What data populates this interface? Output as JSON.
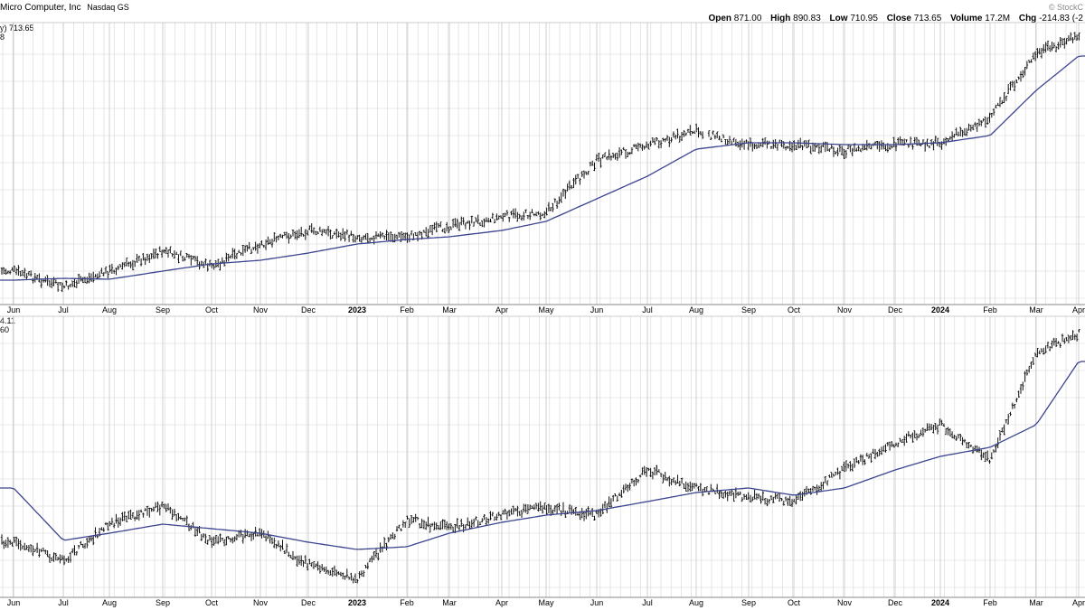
{
  "header": {
    "title": "Micro Computer, Inc",
    "exchange": "Nasdaq GS",
    "watermark": "© StockC",
    "open_label": "Open",
    "open": "871.00",
    "high_label": "High",
    "high": "890.83",
    "low_label": "Low",
    "low": "710.95",
    "close_label": "Close",
    "close": "713.65",
    "volume_label": "Volume",
    "volume": "17.2M",
    "chg_label": "Chg",
    "chg": "-214.83 (-2"
  },
  "panel1": {
    "tag1": "y) 713.65",
    "tag2": "8"
  },
  "panel2": {
    "tag1": "4.11",
    "tag2": "60"
  },
  "chart_data": [
    {
      "type": "line",
      "x": [
        "Jun",
        "Jul",
        "Aug",
        "Sep",
        "Oct",
        "Nov",
        "Dec",
        "2023",
        "Feb",
        "Mar",
        "Apr",
        "May",
        "Jun",
        "Jul",
        "Aug",
        "Sep",
        "Oct",
        "Nov",
        "Dec",
        "2024",
        "Feb",
        "Mar",
        "Apr"
      ],
      "series": [
        {
          "values": [
            300,
            318,
            300,
            278,
            295,
            270,
            255,
            262,
            262,
            250,
            240,
            235,
            178,
            160,
            145,
            160,
            160,
            167,
            160,
            158,
            130,
            60,
            40
          ]
        },
        {
          "values": [
            310,
            308,
            309,
            300,
            292,
            288,
            280,
            270,
            265,
            262,
            255,
            245,
            220,
            195,
            165,
            158,
            158,
            160,
            160,
            158,
            150,
            100,
            62
          ]
        }
      ],
      "style": {
        "series0": "ohlc-bars",
        "series1": "moving-average",
        "ma_color": "#3d4590"
      },
      "labels": [
        "y) 713.65",
        "8"
      ],
      "grid": true
    },
    {
      "type": "line",
      "x": [
        "Jun",
        "Jul",
        "Aug",
        "Sep",
        "Oct",
        "Nov",
        "Dec",
        "2023",
        "Feb",
        "Mar",
        "Apr",
        "May",
        "Jun",
        "Jul",
        "Aug",
        "Sep",
        "Oct",
        "Nov",
        "Dec",
        "2024",
        "Feb",
        "Mar",
        "Apr"
      ],
      "series": [
        {
          "values": [
            600,
            620,
            580,
            560,
            600,
            590,
            625,
            640,
            575,
            585,
            570,
            562,
            570,
            520,
            540,
            550,
            555,
            520,
            490,
            470,
            510,
            390,
            370
          ]
        },
        {
          "values": [
            540,
            598,
            590,
            580,
            585,
            590,
            600,
            608,
            605,
            590,
            578,
            570,
            565,
            555,
            545,
            540,
            548,
            540,
            520,
            505,
            495,
            470,
            400
          ]
        }
      ],
      "style": {
        "series0": "ohlc-bars",
        "series1": "moving-average",
        "ma_color": "#3d4590"
      },
      "labels": [
        "4.11",
        "60"
      ],
      "grid": true
    }
  ]
}
